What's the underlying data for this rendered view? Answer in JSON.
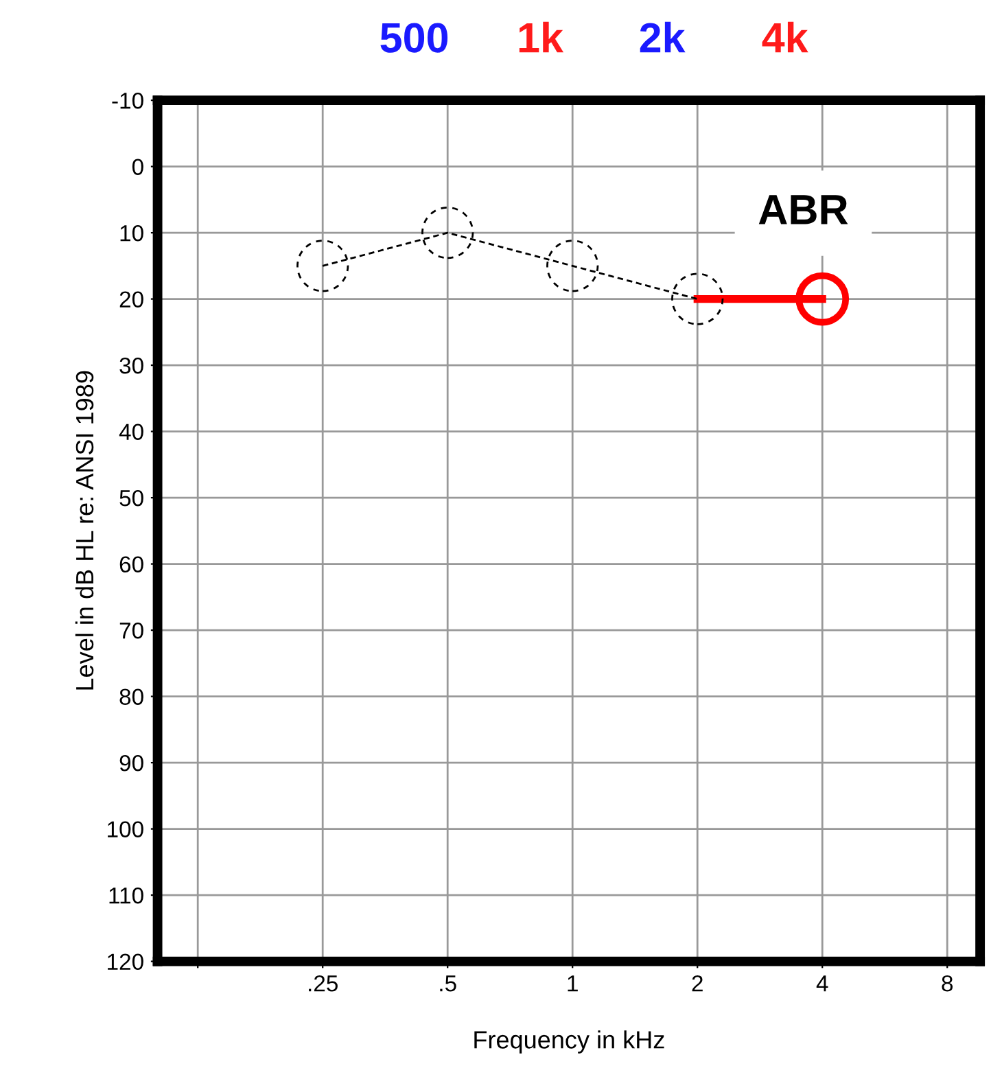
{
  "chart_data": {
    "type": "line",
    "xlabel": "Frequency in kHz",
    "ylabel": "Level in dB HL re: ANSI 1989",
    "annotations": [
      "500",
      "1k",
      "2k",
      "4k"
    ],
    "log": "x",
    "xlim": [
      0.1,
      9.6
    ],
    "xticks": [
      {
        "value": 0.125,
        "label": null
      },
      {
        "value": 0.25,
        "label": ".25"
      },
      {
        "value": 0.5,
        "label": ".5"
      },
      1,
      2,
      4,
      8
    ],
    "ylim": [
      120,
      -10
    ],
    "yticks": [
      -10,
      0,
      10,
      20,
      30,
      40,
      50,
      60,
      70,
      80,
      90,
      100,
      110,
      120
    ],
    "grid": true,
    "series": [
      {
        "x": [
          0.25,
          0.5,
          1,
          2
        ],
        "values": [
          15,
          10,
          15,
          20
        ],
        "color": "#000000",
        "marker": "circle",
        "line_style": "dashed"
      },
      {
        "name": "ABR",
        "x": [
          2,
          4
        ],
        "values": [
          20,
          20
        ],
        "color": "#ff0000",
        "line_style": "solid"
      },
      {
        "type": "scatter",
        "x": [
          4
        ],
        "values": [
          20
        ],
        "color": "#ff0000",
        "marker": "circle"
      }
    ]
  }
}
